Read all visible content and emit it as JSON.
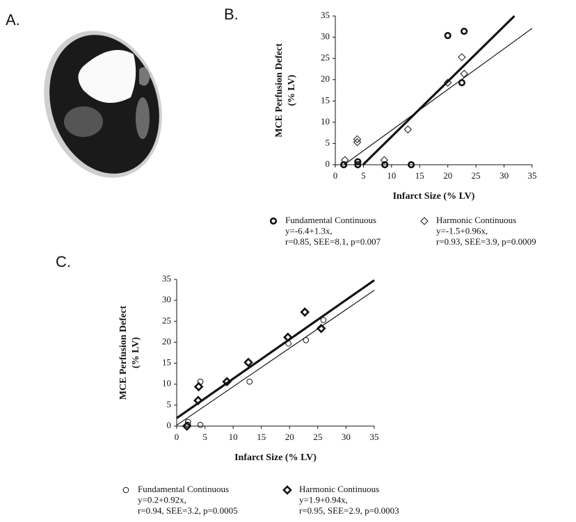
{
  "panel_labels": [
    "A.",
    "B.",
    "C."
  ],
  "chart_data": [
    {
      "type": "scatter",
      "xlabel": "Infarct Size (% LV)",
      "ylabel": [
        "MCE Perfusion Defect",
        "(% LV)"
      ],
      "xlim": [
        0,
        35
      ],
      "ylim": [
        0,
        35
      ],
      "xticks": [
        0,
        5,
        10,
        15,
        20,
        25,
        30,
        35
      ],
      "yticks": [
        0,
        5,
        10,
        15,
        20,
        25,
        30,
        35
      ],
      "series": [
        {
          "name": "Fundamental Continuous",
          "marker": "circle",
          "bold": true,
          "color": "#111111",
          "x": [
            1.5,
            4,
            4,
            8.8,
            13.5,
            20,
            22.9,
            22.5
          ],
          "values": [
            0,
            0.7,
            0,
            0,
            0,
            30.4,
            31.4,
            19.3
          ],
          "fit": {
            "intercept": -6.4,
            "slope": 1.3
          },
          "stats": [
            "y=-6.4+1.3x,",
            "r=0.85, SEE=8.1, p=0.007"
          ]
        },
        {
          "name": "Harmonic Continuous",
          "marker": "diamond",
          "bold": false,
          "color": "#111111",
          "x": [
            1.7,
            3.9,
            3.9,
            8.7,
            12.9,
            20,
            22.9,
            22.5
          ],
          "values": [
            1.1,
            6,
            5.3,
            1.1,
            8.3,
            19.3,
            21.4,
            25.3
          ],
          "fit": {
            "intercept": -1.5,
            "slope": 0.96
          },
          "stats": [
            "y=-1.5+0.96x,",
            "r=0.93, SEE=3.9, p=0.0009"
          ]
        }
      ]
    },
    {
      "type": "scatter",
      "xlabel": "Infarct Size (% LV)",
      "ylabel": [
        "MCE Perfusion Defect",
        "(% LV)"
      ],
      "xlim": [
        0,
        35
      ],
      "ylim": [
        0,
        35
      ],
      "xticks": [
        0,
        5,
        10,
        15,
        20,
        25,
        30,
        35
      ],
      "yticks": [
        0,
        5,
        10,
        15,
        20,
        25,
        30,
        35
      ],
      "series": [
        {
          "name": "Fundamental Continuous",
          "marker": "circle",
          "bold": false,
          "color": "#111111",
          "x": [
            2,
            2,
            4.2,
            4.2,
            8.9,
            12.9,
            19.8,
            22.9,
            26
          ],
          "values": [
            1,
            0.3,
            10.6,
            0.3,
            10.6,
            10.6,
            19.7,
            20.5,
            25.3
          ],
          "fit": {
            "intercept": 0.2,
            "slope": 0.92
          },
          "stats": [
            "y=0.2+0.92x,",
            "r=0.94, SEE=3.2, p=0.0005"
          ]
        },
        {
          "name": "Harmonic Continuous",
          "marker": "diamond",
          "bold": true,
          "color": "#111111",
          "x": [
            1.8,
            3.9,
            3.8,
            8.9,
            12.7,
            19.7,
            22.7,
            25.6
          ],
          "values": [
            0,
            9.4,
            6.1,
            10.6,
            15.2,
            21.2,
            27.2,
            23.3
          ],
          "fit": {
            "intercept": 1.9,
            "slope": 0.94
          },
          "stats": [
            "y=1.9+0.94x,",
            "r=0.95, SEE=2.9, p=0.0003"
          ]
        }
      ]
    }
  ]
}
